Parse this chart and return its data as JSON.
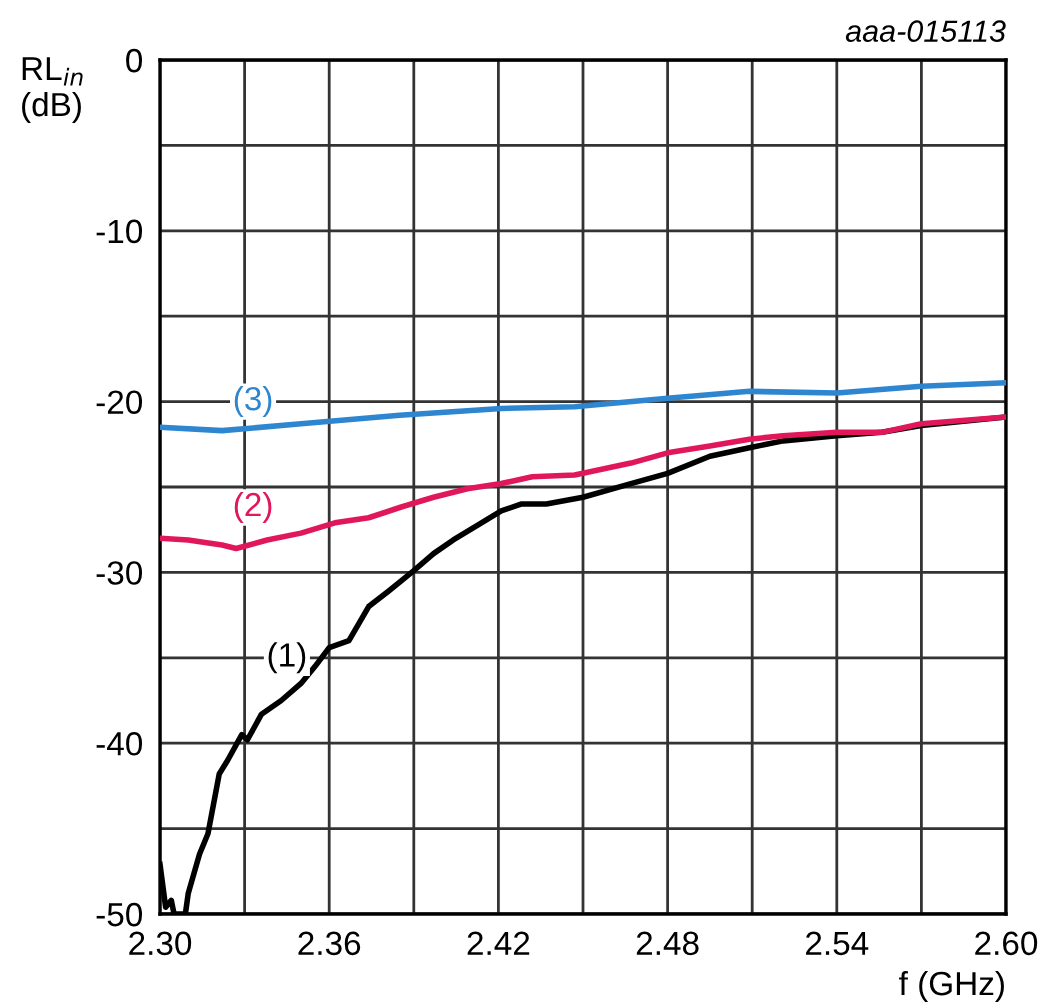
{
  "chart_data": {
    "type": "line",
    "xlabel": "f (GHz)",
    "ylabel": "RL$_{in}$\n(dB)",
    "annotations": [
      "aaa-015113"
    ],
    "xlim": [
      2.3,
      2.6
    ],
    "ylim": [
      -50,
      0
    ],
    "xticks": [
      {
        "value": 2.3,
        "label": "2.30"
      },
      {
        "value": 2.33,
        "label": null
      },
      {
        "value": 2.36,
        "label": "2.36"
      },
      {
        "value": 2.39,
        "label": null
      },
      {
        "value": 2.42,
        "label": "2.42"
      },
      {
        "value": 2.45,
        "label": null
      },
      {
        "value": 2.48,
        "label": "2.48"
      },
      {
        "value": 2.51,
        "label": null
      },
      {
        "value": 2.54,
        "label": "2.54"
      },
      {
        "value": 2.57,
        "label": null
      },
      {
        "value": 2.6,
        "label": "2.60"
      }
    ],
    "yticks": [
      -50,
      {
        "value": -45,
        "label": null
      },
      -40,
      {
        "value": -35,
        "label": null
      },
      -30,
      {
        "value": -25,
        "label": null
      },
      -20,
      {
        "value": -15,
        "label": null
      },
      -10,
      {
        "value": -5,
        "label": null
      },
      0
    ],
    "grid": true,
    "legend": false,
    "line_style": "solid",
    "marker": "none",
    "series": [
      {
        "name": "(1)",
        "color": "#000000",
        "x": [
          2.3,
          2.302,
          2.304,
          2.305,
          2.309,
          2.31,
          2.314,
          2.317,
          2.321,
          2.324,
          2.329,
          2.331,
          2.336,
          2.343,
          2.35,
          2.355,
          2.36,
          2.367,
          2.374,
          2.381,
          2.39,
          2.397,
          2.404,
          2.414,
          2.421,
          2.428,
          2.437,
          2.45,
          2.467,
          2.48,
          2.495,
          2.509,
          2.521,
          2.54,
          2.556,
          2.57,
          2.6
        ],
        "values": [
          -47.1,
          -49.6,
          -49.2,
          -50,
          -50,
          -48.8,
          -46.5,
          -45.3,
          -41.8,
          -41,
          -39.5,
          -39.8,
          -38.3,
          -37.5,
          -36.5,
          -35.5,
          -34.4,
          -34,
          -32,
          -31.1,
          -29.9,
          -28.9,
          -28.1,
          -27.1,
          -26.4,
          -26,
          -26,
          -25.6,
          -24.8,
          -24.2,
          -23.2,
          -22.7,
          -22.3,
          -22,
          -21.8,
          -21.4,
          -20.9
        ]
      },
      {
        "name": "(2)",
        "color": "#e0185a",
        "x": [
          2.3,
          2.31,
          2.322,
          2.327,
          2.338,
          2.35,
          2.362,
          2.374,
          2.385,
          2.397,
          2.409,
          2.421,
          2.432,
          2.447,
          2.45,
          2.467,
          2.48,
          2.495,
          2.509,
          2.521,
          2.54,
          2.556,
          2.57,
          2.6
        ],
        "values": [
          -28,
          -28.1,
          -28.4,
          -28.6,
          -28.1,
          -27.7,
          -27.1,
          -26.8,
          -26.2,
          -25.6,
          -25.1,
          -24.8,
          -24.4,
          -24.3,
          -24.2,
          -23.6,
          -23,
          -22.6,
          -22.2,
          -22,
          -21.8,
          -21.8,
          -21.3,
          -20.9
        ]
      },
      {
        "name": "(3)",
        "color": "#2f86d0",
        "x": [
          2.3,
          2.322,
          2.35,
          2.385,
          2.421,
          2.447,
          2.48,
          2.509,
          2.54,
          2.57,
          2.6
        ],
        "values": [
          -21.5,
          -21.7,
          -21.3,
          -20.8,
          -20.4,
          -20.3,
          -19.8,
          -19.4,
          -19.5,
          -19.1,
          -18.9
        ]
      }
    ]
  }
}
